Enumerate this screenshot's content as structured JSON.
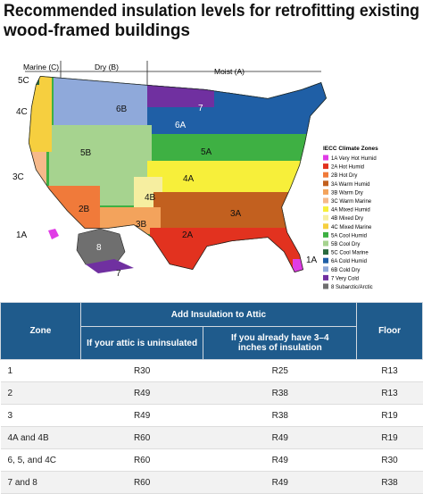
{
  "title": [
    "Recommended insulation levels for retrofitting existing",
    "wood-framed buildings"
  ],
  "map": {
    "regions": [
      "Marine (C)",
      "Dry (B)",
      "Moist (A)"
    ],
    "zone_labels": [
      "5C",
      "4C",
      "3C",
      "6B",
      "7",
      "6A",
      "5B",
      "5A",
      "4A",
      "4B",
      "2B",
      "3B",
      "3A",
      "2A",
      "1A",
      "8",
      "7",
      "1A"
    ],
    "legend": {
      "title": "IECC Climate Zones",
      "items": [
        {
          "label": "1A Very Hot Humid",
          "color": "#e03ce6"
        },
        {
          "label": "2A Hot Humid",
          "color": "#e2321f"
        },
        {
          "label": "2B Hot Dry",
          "color": "#f07a3a"
        },
        {
          "label": "3A Warm Humid",
          "color": "#c2601f"
        },
        {
          "label": "3B Warm Dry",
          "color": "#f3a35c"
        },
        {
          "label": "3C Warm Marine",
          "color": "#f6b98a"
        },
        {
          "label": "4A Mixed Humid",
          "color": "#f7ef3a"
        },
        {
          "label": "4B Mixed Dry",
          "color": "#f6eea0"
        },
        {
          "label": "4C Mixed Marine",
          "color": "#f6cf3f"
        },
        {
          "label": "5A Cool Humid",
          "color": "#3eb043"
        },
        {
          "label": "5B Cool Dry",
          "color": "#a6d38f"
        },
        {
          "label": "5C Cool Marine",
          "color": "#2a6a3e"
        },
        {
          "label": "6A Cold Humid",
          "color": "#1f5fa6"
        },
        {
          "label": "6B Cold Dry",
          "color": "#8fa9da"
        },
        {
          "label": "7 Very Cold",
          "color": "#7030a0"
        },
        {
          "label": "8 Subarctic/Arctic",
          "color": "#6f6f6f"
        }
      ]
    }
  },
  "table": {
    "header": {
      "zone": "Zone",
      "attic": "Add Insulation to Attic",
      "uninsulated": "If your attic is uninsulated",
      "existing": "If you already have 3–4 inches of insulation",
      "floor": "Floor"
    },
    "rows": [
      [
        "1",
        "R30",
        "R25",
        "R13"
      ],
      [
        "2",
        "R49",
        "R38",
        "R13"
      ],
      [
        "3",
        "R49",
        "R38",
        "R19"
      ],
      [
        "4A and 4B",
        "R60",
        "R49",
        "R19"
      ],
      [
        "6, 5, and 4C",
        "R60",
        "R49",
        "R30"
      ],
      [
        "7 and 8",
        "R60",
        "R49",
        "R38"
      ]
    ]
  }
}
